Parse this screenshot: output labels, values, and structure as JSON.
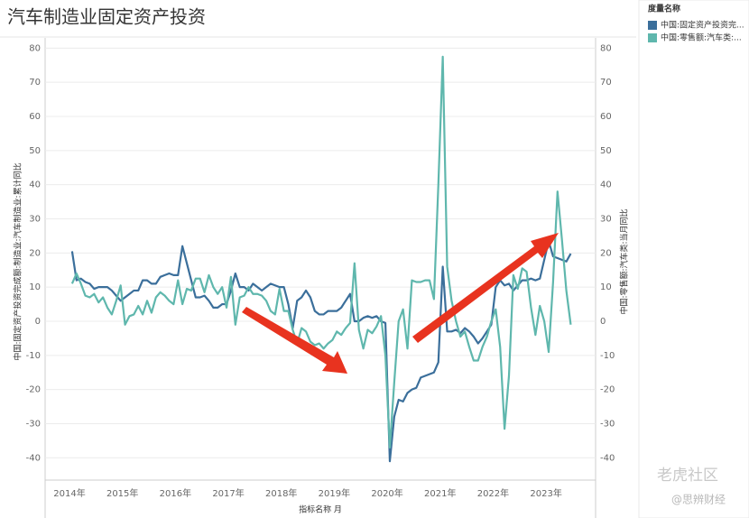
{
  "chart_data": {
    "type": "line",
    "title": "汽车制造业固定资产投资",
    "legend_title": "度量名称",
    "y_label": "中国:固定资产投资完成额:制造业:汽车制造业:累计同比",
    "y2_label": "中国:零售额:汽车类:当月同比",
    "x_label": "指标名称 月",
    "watermark": "老虎社区",
    "watermark_author": "@思辨财经",
    "categories": [
      "2014年",
      null,
      null,
      null,
      null,
      null,
      null,
      null,
      null,
      null,
      null,
      null,
      "2015年",
      null,
      null,
      null,
      null,
      null,
      null,
      null,
      null,
      null,
      null,
      null,
      "2016年",
      null,
      null,
      null,
      null,
      null,
      null,
      null,
      null,
      null,
      null,
      null,
      "2017年",
      null,
      null,
      null,
      null,
      null,
      null,
      null,
      null,
      null,
      null,
      null,
      "2018年",
      null,
      null,
      null,
      null,
      null,
      null,
      null,
      null,
      null,
      null,
      null,
      "2019年",
      null,
      null,
      null,
      null,
      null,
      null,
      null,
      null,
      null,
      null,
      null,
      "2020年",
      null,
      null,
      null,
      null,
      null,
      null,
      null,
      null,
      null,
      null,
      null,
      "2021年",
      null,
      null,
      null,
      null,
      null,
      null,
      null,
      null,
      null,
      null,
      null,
      "2022年",
      null,
      null,
      null,
      null,
      null,
      null,
      null,
      null,
      null,
      null,
      null,
      "2023年",
      null,
      null,
      null,
      null,
      null,
      null
    ],
    "series": [
      {
        "name": "中国:固定资产投资完...",
        "color": "#3b6f9b",
        "axis": "y",
        "values": [
          null,
          20.5,
          12,
          12.5,
          11.5,
          11,
          9.5,
          10,
          10,
          10,
          9,
          7.5,
          6,
          7,
          8,
          9,
          9,
          12,
          12,
          11,
          11,
          13,
          13.5,
          14,
          13.5,
          13.5,
          22,
          17,
          12,
          7,
          7,
          7.5,
          6,
          4,
          4,
          5,
          5,
          9,
          14,
          10,
          10,
          9,
          11,
          10,
          9,
          10,
          11,
          10.5,
          10,
          10,
          5,
          -2,
          6,
          7,
          9,
          7,
          3,
          2,
          2,
          3,
          3,
          3,
          4,
          6,
          8,
          0,
          0,
          1,
          1.5,
          1,
          1.5,
          0,
          -0.5,
          -41,
          -28,
          -23,
          -23.5,
          -21,
          -20,
          -19.5,
          -16.5,
          -16,
          -15.5,
          -15,
          -12,
          16,
          -3,
          -3,
          -2.5,
          -3.5,
          -2,
          -3,
          -4.5,
          -6.5,
          -5,
          -3,
          -1,
          10,
          12,
          10.5,
          11,
          9,
          10.5,
          12,
          12,
          12.5,
          12,
          12.5,
          18,
          23.5,
          19,
          18.5,
          18,
          17.5,
          19.8
        ]
      },
      {
        "name": "中国:零售额:汽车类:...",
        "color": "#5fb7ad",
        "axis": "y2",
        "values": [
          null,
          11,
          14,
          11,
          7.5,
          7,
          8,
          5.5,
          7,
          4,
          2,
          6,
          10.5,
          -1,
          1.5,
          2,
          4.5,
          2,
          6,
          2.5,
          7,
          8.5,
          7.5,
          6,
          5,
          12,
          5,
          9.5,
          9,
          12.5,
          12.5,
          8.5,
          13.5,
          10,
          8,
          10,
          4,
          13,
          -1,
          7,
          7.5,
          10,
          8,
          8,
          7.5,
          6,
          3,
          2,
          9.5,
          3,
          3,
          -2.5,
          -6.5,
          -2,
          -3,
          -6,
          -7,
          -6.5,
          -8,
          -6.5,
          -5.5,
          -3,
          -4,
          -2,
          -0.5,
          17,
          -2.5,
          -8,
          -2.5,
          -3.5,
          -1.5,
          1.5,
          -10,
          -37,
          -18,
          0,
          3.5,
          -8,
          12,
          11.5,
          11.5,
          12,
          12,
          6.5,
          40,
          77.5,
          16,
          6,
          0,
          -4.5,
          -3,
          -7.5,
          -11.5,
          -11.5,
          -7.5,
          -4.5,
          0,
          3.5,
          -7.5,
          -31.5,
          -16,
          13.5,
          9.5,
          15.5,
          14.5,
          4,
          -4,
          4.5,
          0,
          -9,
          11.5,
          38,
          24,
          9,
          -1
        ]
      }
    ],
    "ylim": [
      -46,
      83
    ],
    "yticks": [
      -40,
      -30,
      -20,
      -10,
      0,
      10,
      20,
      30,
      40,
      50,
      60,
      70,
      80
    ],
    "y2lim": [
      -46,
      83
    ],
    "y2ticks": [
      -40,
      -30,
      -20,
      -10,
      0,
      10,
      20,
      30,
      40,
      50,
      60,
      70,
      80
    ],
    "grid": true
  }
}
